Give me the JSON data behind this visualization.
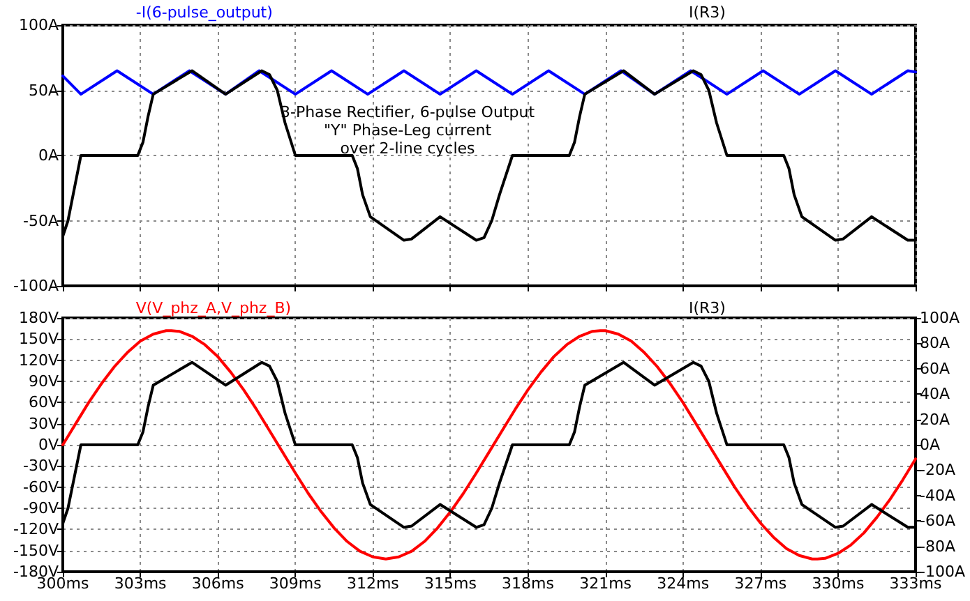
{
  "chart_data": [
    {
      "type": "line",
      "xlim": [
        300,
        333
      ],
      "xticks": [
        300,
        303,
        306,
        309,
        312,
        315,
        318,
        321,
        324,
        327,
        330,
        333
      ],
      "tick_labels": "y",
      "ylim": [
        -100,
        100
      ],
      "yticks": [
        {
          "value": -100,
          "label": "-100A"
        },
        {
          "value": -50,
          "label": "-50A"
        },
        {
          "value": 0,
          "label": "0A"
        },
        {
          "value": 50,
          "label": "50A"
        },
        {
          "value": 100,
          "label": "100A"
        }
      ],
      "grid": true,
      "legend": "top",
      "marker": "none",
      "annotations": [
        "3-Phase Rectifier, 6-pulse Output\n\"Y\" Phase-Leg current\nover 2-line cycles"
      ],
      "series": [
        {
          "name": "-I(6-pulse_output)",
          "color": "#0000ff",
          "x": [
            300,
            300.7,
            302.1,
            303.5,
            304.9,
            306.3,
            307.6,
            309.0,
            310.4,
            311.8,
            313.2,
            314.6,
            316.0,
            317.4,
            318.8,
            320.2,
            321.6,
            322.9,
            324.3,
            325.7,
            327.1,
            328.5,
            329.9,
            331.3,
            332.7,
            333
          ],
          "values": [
            61,
            47,
            65,
            47,
            65,
            47,
            65,
            47,
            65,
            47,
            65,
            47,
            65,
            47,
            65,
            47,
            65,
            47,
            65,
            47,
            65,
            47,
            65,
            47,
            65,
            64
          ]
        },
        {
          "name": "I(R3)",
          "color": "#000000",
          "x": [
            300,
            300.2,
            300.4,
            300.7,
            302.9,
            303.1,
            303.3,
            303.5,
            305.0,
            306.3,
            307.7,
            308.0,
            308.3,
            308.6,
            309.0,
            311.2,
            311.4,
            311.6,
            311.9,
            313.2,
            313.5,
            314.6,
            316.0,
            316.3,
            316.6,
            316.9,
            317.4,
            319.6,
            319.8,
            320.0,
            320.2,
            321.7,
            322.9,
            324.4,
            324.7,
            325.0,
            325.3,
            325.7,
            327.9,
            328.1,
            328.3,
            328.6,
            329.9,
            330.2,
            331.3,
            332.7,
            333
          ],
          "values": [
            -62,
            -50,
            -30,
            0,
            0,
            10,
            30,
            47,
            65,
            47,
            65,
            62,
            50,
            25,
            0,
            0,
            -10,
            -30,
            -47,
            -65,
            -64,
            -47,
            -65,
            -63,
            -50,
            -30,
            0,
            0,
            10,
            30,
            47,
            65,
            47,
            65,
            62,
            50,
            25,
            0,
            0,
            -10,
            -30,
            -47,
            -65,
            -64,
            -47,
            -65,
            -65
          ]
        }
      ]
    },
    {
      "type": "line",
      "xlim": [
        300,
        333
      ],
      "xticks": [
        {
          "value": 300,
          "label": "300ms"
        },
        {
          "value": 303,
          "label": "303ms"
        },
        {
          "value": 306,
          "label": "306ms"
        },
        {
          "value": 309,
          "label": "309ms"
        },
        {
          "value": 312,
          "label": "312ms"
        },
        {
          "value": 315,
          "label": "315ms"
        },
        {
          "value": 318,
          "label": "318ms"
        },
        {
          "value": 321,
          "label": "321ms"
        },
        {
          "value": 324,
          "label": "324ms"
        },
        {
          "value": 327,
          "label": "327ms"
        },
        {
          "value": 330,
          "label": "330ms"
        },
        {
          "value": 333,
          "label": "333ms"
        }
      ],
      "ylim": [
        -180,
        180
      ],
      "yticks": [
        {
          "value": -180,
          "label": "-180V"
        },
        {
          "value": -150,
          "label": "-150V"
        },
        {
          "value": -120,
          "label": "-120V"
        },
        {
          "value": -90,
          "label": "-90V"
        },
        {
          "value": -60,
          "label": "-60V"
        },
        {
          "value": -30,
          "label": "-30V"
        },
        {
          "value": 0,
          "label": "0V"
        },
        {
          "value": 30,
          "label": "30V"
        },
        {
          "value": 60,
          "label": "60V"
        },
        {
          "value": 90,
          "label": "90V"
        },
        {
          "value": 120,
          "label": "120V"
        },
        {
          "value": 150,
          "label": "150V"
        },
        {
          "value": 180,
          "label": "180V"
        }
      ],
      "y2lim": [
        -100,
        100
      ],
      "y2ticks": [
        {
          "value": -100,
          "label": "-100A"
        },
        {
          "value": -80,
          "label": "-80A"
        },
        {
          "value": -60,
          "label": "-60A"
        },
        {
          "value": -40,
          "label": "-40A"
        },
        {
          "value": -20,
          "label": "-20A"
        },
        {
          "value": 0,
          "label": "0A"
        },
        {
          "value": 20,
          "label": "20A"
        },
        {
          "value": 40,
          "label": "40A"
        },
        {
          "value": 60,
          "label": "60A"
        },
        {
          "value": 80,
          "label": "80A"
        },
        {
          "value": 100,
          "label": "100A"
        }
      ],
      "grid": true,
      "legend": "top",
      "marker": "none",
      "series": [
        {
          "name": "V(V_phz_A,V_phz_B)",
          "color": "#ff0000",
          "x": [
            300,
            300.5,
            301,
            301.5,
            302,
            302.5,
            303,
            303.5,
            304,
            304.2,
            304.5,
            305,
            305.5,
            306,
            306.5,
            307,
            307.5,
            308,
            308.5,
            309,
            309.5,
            310,
            310.5,
            311,
            311.5,
            312,
            312.5,
            313,
            313.5,
            314,
            314.5,
            315,
            315.5,
            316,
            316.5,
            317,
            317.5,
            318,
            318.5,
            319,
            319.5,
            320,
            320.5,
            320.8,
            321,
            321.5,
            322,
            322.5,
            323,
            323.5,
            324,
            324.5,
            325,
            325.5,
            326,
            326.5,
            327,
            327.5,
            328,
            328.5,
            329,
            329.2,
            329.5,
            330,
            330.5,
            331,
            331.5,
            332,
            332.5,
            333
          ],
          "values": [
            0,
            30,
            60,
            87,
            111,
            131,
            147,
            157,
            162,
            162,
            161,
            154,
            142,
            125,
            103,
            78,
            50,
            20,
            -10,
            -40,
            -69,
            -95,
            -118,
            -137,
            -151,
            -159,
            -162,
            -159,
            -151,
            -137,
            -118,
            -95,
            -69,
            -40,
            -10,
            20,
            50,
            78,
            103,
            125,
            142,
            154,
            161,
            162,
            162,
            157,
            147,
            131,
            111,
            87,
            60,
            30,
            0,
            -30,
            -60,
            -87,
            -111,
            -131,
            -147,
            -157,
            -162,
            -162,
            -161,
            -154,
            -142,
            -125,
            -103,
            -78,
            -50,
            -20
          ]
        },
        {
          "name": "I(R3)",
          "color": "#000000",
          "axis": "y2",
          "x": [
            300,
            300.2,
            300.4,
            300.7,
            302.9,
            303.1,
            303.3,
            303.5,
            305.0,
            306.3,
            307.7,
            308.0,
            308.3,
            308.6,
            309.0,
            311.2,
            311.4,
            311.6,
            311.9,
            313.2,
            313.5,
            314.6,
            316.0,
            316.3,
            316.6,
            316.9,
            317.4,
            319.6,
            319.8,
            320.0,
            320.2,
            321.7,
            322.9,
            324.4,
            324.7,
            325.0,
            325.3,
            325.7,
            327.9,
            328.1,
            328.3,
            328.6,
            329.9,
            330.2,
            331.3,
            332.7,
            333
          ],
          "values": [
            -62,
            -50,
            -30,
            0,
            0,
            10,
            30,
            47,
            65,
            47,
            65,
            62,
            50,
            25,
            0,
            0,
            -10,
            -30,
            -47,
            -65,
            -64,
            -47,
            -65,
            -63,
            -50,
            -30,
            0,
            0,
            10,
            30,
            47,
            65,
            47,
            65,
            62,
            50,
            25,
            0,
            0,
            -10,
            -30,
            -47,
            -65,
            -64,
            -47,
            -65,
            -65
          ]
        }
      ]
    }
  ]
}
